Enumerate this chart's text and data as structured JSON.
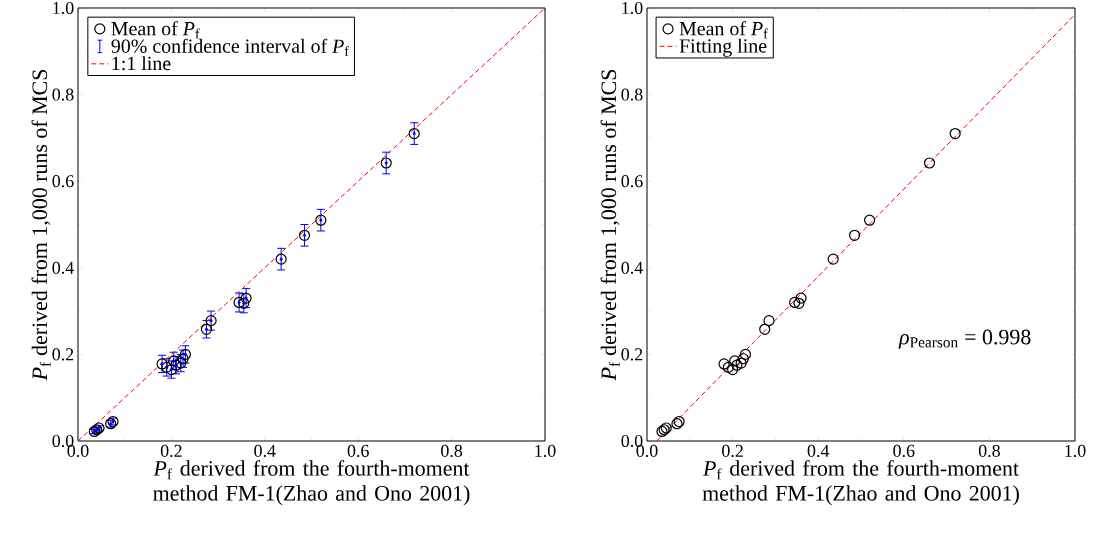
{
  "chart_data": [
    {
      "type": "scatter",
      "xlabel": "*P*$_{f}$ derived from the fourth-moment method FM-1(Zhao and Ono 2001)",
      "ylabel": "*P*$_{f}$ derived from 1,000 runs of MCS",
      "xlim": [
        0,
        1
      ],
      "ylim": [
        0,
        1
      ],
      "xticks": [
        {
          "value": 0,
          "label": "0.0"
        },
        {
          "value": 0.2,
          "label": "0.2"
        },
        {
          "value": 0.4,
          "label": "0.4"
        },
        {
          "value": 0.6,
          "label": "0.6"
        },
        {
          "value": 0.8,
          "label": "0.8"
        },
        {
          "value": 1,
          "label": "1.0"
        }
      ],
      "yticks": [
        {
          "value": 0,
          "label": "0.0"
        },
        {
          "value": 0.2,
          "label": "0.2"
        },
        {
          "value": 0.4,
          "label": "0.4"
        },
        {
          "value": 0.6,
          "label": "0.6"
        },
        {
          "value": 0.8,
          "label": "0.8"
        },
        {
          "value": 1,
          "label": "1.0"
        }
      ],
      "legend": "top left",
      "marker": "circle",
      "grid": false,
      "series": [
        {
          "name": "Mean of *P*$_{f}$",
          "color": "#000000",
          "x": [
            0.035,
            0.04,
            0.045,
            0.07,
            0.075,
            0.18,
            0.19,
            0.2,
            0.205,
            0.21,
            0.22,
            0.225,
            0.23,
            0.275,
            0.285,
            0.345,
            0.355,
            0.36,
            0.435,
            0.485,
            0.52,
            0.66,
            0.72
          ],
          "values": [
            0.022,
            0.026,
            0.03,
            0.04,
            0.045,
            0.178,
            0.17,
            0.165,
            0.185,
            0.175,
            0.18,
            0.19,
            0.2,
            0.258,
            0.278,
            0.32,
            0.318,
            0.33,
            0.42,
            0.475,
            0.51,
            0.642,
            0.71
          ]
        },
        {
          "name": "90% confidence interval of *P*$_{f}$",
          "color": "#0000ff",
          "x": [
            0.035,
            0.04,
            0.045,
            0.07,
            0.075,
            0.18,
            0.19,
            0.2,
            0.205,
            0.21,
            0.22,
            0.225,
            0.23,
            0.275,
            0.285,
            0.345,
            0.355,
            0.36,
            0.435,
            0.485,
            0.52,
            0.66,
            0.72
          ],
          "values": [
            0.022,
            0.026,
            0.03,
            0.04,
            0.045,
            0.178,
            0.17,
            0.165,
            0.185,
            0.175,
            0.18,
            0.19,
            0.2,
            0.258,
            0.278,
            0.32,
            0.318,
            0.33,
            0.42,
            0.475,
            0.51,
            0.642,
            0.71
          ],
          "errors": [
            0.005,
            0.005,
            0.005,
            0.008,
            0.008,
            0.02,
            0.02,
            0.02,
            0.02,
            0.02,
            0.02,
            0.02,
            0.02,
            0.02,
            0.022,
            0.022,
            0.022,
            0.022,
            0.025,
            0.025,
            0.025,
            0.025,
            0.025
          ]
        },
        {
          "name": "1:1 line",
          "type": "line",
          "color": "#ff0000",
          "line_style": "dashed",
          "marker": "none",
          "x": [
            0,
            1
          ],
          "values": [
            0,
            1
          ]
        }
      ]
    },
    {
      "type": "scatter",
      "xlabel": "*P*$_{f}$ derived from the fourth-moment method FM-1(Zhao and Ono 2001)",
      "ylabel": "*P*$_{f}$ derived from 1,000 runs of MCS",
      "xlim": [
        0,
        1
      ],
      "ylim": [
        0,
        1
      ],
      "xticks": [
        {
          "value": 0,
          "label": "0.0"
        },
        {
          "value": 0.2,
          "label": "0.2"
        },
        {
          "value": 0.4,
          "label": "0.4"
        },
        {
          "value": 0.6,
          "label": "0.6"
        },
        {
          "value": 0.8,
          "label": "0.8"
        },
        {
          "value": 1,
          "label": "1.0"
        }
      ],
      "yticks": [
        {
          "value": 0,
          "label": "0.0"
        },
        {
          "value": 0.2,
          "label": "0.2"
        },
        {
          "value": 0.4,
          "label": "0.4"
        },
        {
          "value": 0.6,
          "label": "0.6"
        },
        {
          "value": 0.8,
          "label": "0.8"
        },
        {
          "value": 1,
          "label": "1.0"
        }
      ],
      "legend": "top left",
      "marker": "circle",
      "grid": false,
      "annotations": [
        "*ρ*$_{Pearson}$ = 0.998"
      ],
      "series": [
        {
          "name": "Mean of *P*$_{f}$",
          "color": "#000000",
          "x": [
            0.035,
            0.04,
            0.045,
            0.07,
            0.075,
            0.18,
            0.19,
            0.2,
            0.205,
            0.21,
            0.22,
            0.225,
            0.23,
            0.275,
            0.285,
            0.345,
            0.355,
            0.36,
            0.435,
            0.485,
            0.52,
            0.66,
            0.72
          ],
          "values": [
            0.022,
            0.026,
            0.03,
            0.04,
            0.045,
            0.178,
            0.17,
            0.165,
            0.185,
            0.175,
            0.18,
            0.19,
            0.2,
            0.258,
            0.278,
            0.32,
            0.318,
            0.33,
            0.42,
            0.475,
            0.51,
            0.642,
            0.71
          ]
        },
        {
          "name": "Fitting line",
          "type": "line",
          "color": "#ff0000",
          "line_style": "dashed",
          "marker": "none",
          "x": [
            0.023,
            1
          ],
          "values": [
            0,
            0.985
          ]
        }
      ]
    }
  ]
}
